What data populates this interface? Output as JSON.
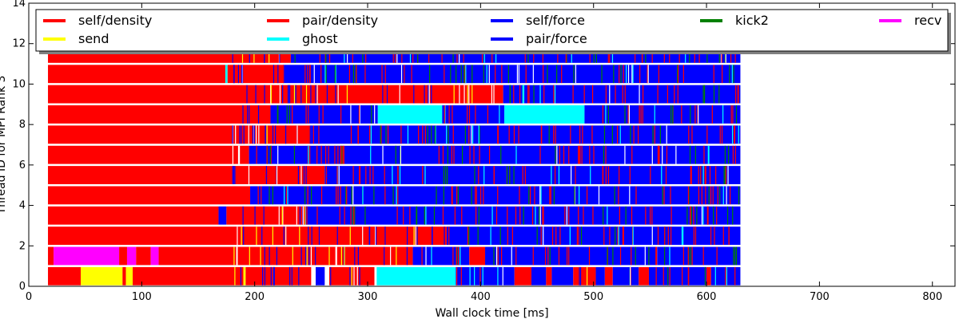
{
  "chart_data": {
    "type": "timeline",
    "xlabel": "Wall clock time [ms]",
    "ylabel": "Thread ID for MPI Rank 3",
    "xlim": [
      0,
      820
    ],
    "ylim": [
      0,
      14
    ],
    "xticks": [
      0,
      100,
      200,
      300,
      400,
      500,
      600,
      700,
      800
    ],
    "yticks": [
      0,
      2,
      4,
      6,
      8,
      10,
      12,
      14
    ],
    "grid": false,
    "legend_position": "top",
    "task_types": [
      {
        "name": "self/density",
        "color": "#ff0000"
      },
      {
        "name": "pair/density",
        "color": "#ff0000"
      },
      {
        "name": "self/force",
        "color": "#0000ff"
      },
      {
        "name": "kick2",
        "color": "#008000"
      },
      {
        "name": "recv",
        "color": "#ff00ff"
      },
      {
        "name": "send",
        "color": "#ffff00"
      },
      {
        "name": "ghost",
        "color": "#00ffff"
      },
      {
        "name": "pair/force",
        "color": "#0000ff"
      }
    ],
    "threads": [
      {
        "thread": 0,
        "tasks": [
          {
            "type": "pair/density",
            "start": 17,
            "end": 46
          },
          {
            "type": "send",
            "start": 46,
            "end": 83
          },
          {
            "type": "pair/density",
            "start": 83,
            "end": 86
          },
          {
            "type": "send",
            "start": 86,
            "end": 92
          },
          {
            "type": "pair/density",
            "start": 92,
            "end": 190
          },
          {
            "type": "send",
            "start": 190,
            "end": 192
          },
          {
            "type": "pair/density",
            "start": 192,
            "end": 250
          },
          {
            "type": "pair/force",
            "start": 254,
            "end": 262
          },
          {
            "type": "pair/density",
            "start": 266,
            "end": 306
          },
          {
            "type": "ghost",
            "start": 308,
            "end": 378
          },
          {
            "type": "pair/force",
            "start": 378,
            "end": 430
          },
          {
            "type": "pair/density",
            "start": 430,
            "end": 445
          },
          {
            "type": "pair/force",
            "start": 445,
            "end": 458
          },
          {
            "type": "pair/density",
            "start": 458,
            "end": 463
          },
          {
            "type": "pair/force",
            "start": 463,
            "end": 482
          },
          {
            "type": "pair/density",
            "start": 482,
            "end": 502
          },
          {
            "type": "pair/force",
            "start": 502,
            "end": 510
          },
          {
            "type": "pair/density",
            "start": 510,
            "end": 517
          },
          {
            "type": "pair/force",
            "start": 517,
            "end": 540
          },
          {
            "type": "pair/density",
            "start": 540,
            "end": 549
          },
          {
            "type": "pair/force",
            "start": 549,
            "end": 600
          },
          {
            "type": "pair/density",
            "start": 600,
            "end": 604
          },
          {
            "type": "pair/force",
            "start": 604,
            "end": 630
          }
        ]
      },
      {
        "thread": 1,
        "tasks": [
          {
            "type": "pair/density",
            "start": 17,
            "end": 22
          },
          {
            "type": "recv",
            "start": 22,
            "end": 80
          },
          {
            "type": "pair/density",
            "start": 80,
            "end": 87
          },
          {
            "type": "recv",
            "start": 87,
            "end": 95
          },
          {
            "type": "pair/density",
            "start": 95,
            "end": 108
          },
          {
            "type": "recv",
            "start": 108,
            "end": 115
          },
          {
            "type": "pair/density",
            "start": 115,
            "end": 340
          },
          {
            "type": "pair/force",
            "start": 340,
            "end": 390
          },
          {
            "type": "pair/density",
            "start": 390,
            "end": 404
          },
          {
            "type": "pair/force",
            "start": 404,
            "end": 630
          }
        ]
      },
      {
        "thread": 2,
        "tasks": [
          {
            "type": "pair/density",
            "start": 17,
            "end": 370
          },
          {
            "type": "pair/force",
            "start": 370,
            "end": 630
          }
        ]
      },
      {
        "thread": 3,
        "tasks": [
          {
            "type": "pair/density",
            "start": 17,
            "end": 168
          },
          {
            "type": "pair/force",
            "start": 168,
            "end": 175
          },
          {
            "type": "pair/density",
            "start": 175,
            "end": 245
          },
          {
            "type": "pair/force",
            "start": 245,
            "end": 630
          }
        ]
      },
      {
        "thread": 4,
        "tasks": [
          {
            "type": "pair/density",
            "start": 17,
            "end": 196
          },
          {
            "type": "pair/force",
            "start": 196,
            "end": 630
          }
        ]
      },
      {
        "thread": 5,
        "tasks": [
          {
            "type": "pair/density",
            "start": 17,
            "end": 262
          },
          {
            "type": "pair/force",
            "start": 262,
            "end": 630
          }
        ]
      },
      {
        "thread": 6,
        "tasks": [
          {
            "type": "pair/density",
            "start": 17,
            "end": 195
          },
          {
            "type": "pair/force",
            "start": 195,
            "end": 630
          }
        ]
      },
      {
        "thread": 7,
        "tasks": [
          {
            "type": "pair/density",
            "start": 17,
            "end": 250
          },
          {
            "type": "pair/force",
            "start": 250,
            "end": 630
          }
        ]
      },
      {
        "thread": 8,
        "tasks": [
          {
            "type": "pair/density",
            "start": 17,
            "end": 214
          },
          {
            "type": "pair/force",
            "start": 214,
            "end": 309
          },
          {
            "type": "ghost",
            "start": 309,
            "end": 366
          },
          {
            "type": "pair/force",
            "start": 366,
            "end": 421
          },
          {
            "type": "ghost",
            "start": 421,
            "end": 492
          },
          {
            "type": "pair/force",
            "start": 492,
            "end": 630
          }
        ]
      },
      {
        "thread": 9,
        "tasks": [
          {
            "type": "pair/density",
            "start": 17,
            "end": 420
          },
          {
            "type": "pair/force",
            "start": 420,
            "end": 630
          }
        ]
      },
      {
        "thread": 10,
        "tasks": [
          {
            "type": "pair/density",
            "start": 17,
            "end": 174
          },
          {
            "type": "ghost",
            "start": 174,
            "end": 176
          },
          {
            "type": "pair/density",
            "start": 176,
            "end": 225
          },
          {
            "type": "pair/force",
            "start": 225,
            "end": 630
          }
        ]
      },
      {
        "thread": 11,
        "tasks": [
          {
            "type": "pair/density",
            "start": 17,
            "end": 232
          },
          {
            "type": "pair/force",
            "start": 232,
            "end": 630
          }
        ]
      }
    ]
  }
}
